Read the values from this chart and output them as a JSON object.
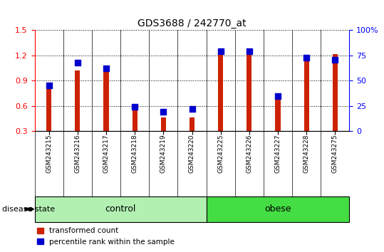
{
  "title": "GDS3688 / 242770_at",
  "samples": [
    "GSM243215",
    "GSM243216",
    "GSM243217",
    "GSM243218",
    "GSM243219",
    "GSM243220",
    "GSM243225",
    "GSM243226",
    "GSM243227",
    "GSM243228",
    "GSM243275"
  ],
  "transformed_count": [
    0.88,
    1.02,
    1.0,
    0.57,
    0.46,
    0.46,
    1.28,
    1.25,
    0.72,
    1.18,
    1.22
  ],
  "percentile_rank": [
    45,
    68,
    62,
    24,
    19,
    22,
    79,
    79,
    35,
    73,
    71
  ],
  "groups": [
    {
      "label": "control",
      "start": 0,
      "end": 5,
      "color": "#b2f0b2"
    },
    {
      "label": "obese",
      "start": 6,
      "end": 10,
      "color": "#44dd44"
    }
  ],
  "ylim_left": [
    0.3,
    1.5
  ],
  "ylim_right": [
    0,
    100
  ],
  "yticks_left": [
    0.3,
    0.6,
    0.9,
    1.2,
    1.5
  ],
  "yticks_right": [
    0,
    25,
    50,
    75,
    100
  ],
  "bar_color": "#cc2200",
  "dot_color": "#0000cc",
  "bar_width": 0.18,
  "dot_size": 28,
  "legend_items": [
    "transformed count",
    "percentile rank within the sample"
  ],
  "disease_state_label": "disease state"
}
